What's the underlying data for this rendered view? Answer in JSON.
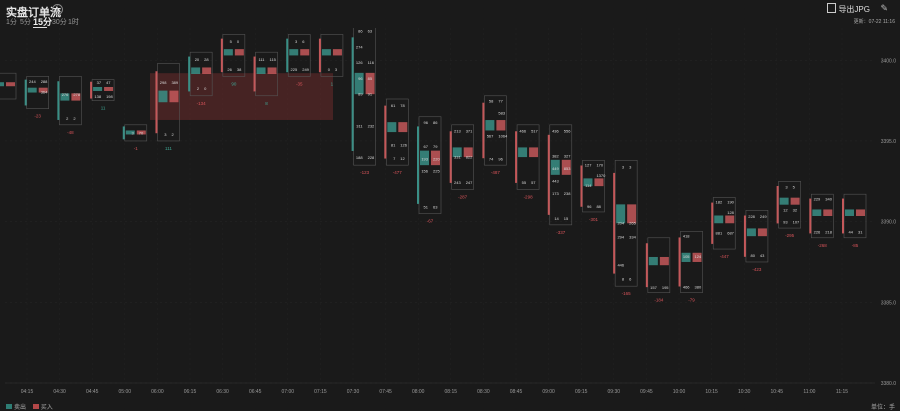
{
  "header": {
    "title": "实盘订单流",
    "tabs": [
      {
        "label": "1分",
        "active": false
      },
      {
        "label": "5分",
        "active": false
      },
      {
        "label": "15分",
        "active": true
      },
      {
        "label": "30分",
        "active": false
      },
      {
        "label": "1时",
        "active": false
      }
    ],
    "export_label": "导出JPG",
    "updated_label": "更新：",
    "updated_time": "07-22 11:16"
  },
  "legend": {
    "sell_label": "卖出",
    "buy_label": "买入",
    "sell_color": "#2e7d74",
    "buy_color": "#b34748"
  },
  "unit_label": "单位：手",
  "colors": {
    "bg": "#1a1a1a",
    "sell": "#3a8f86",
    "buy": "#c4585a",
    "grid": "#272727"
  },
  "chart_data": {
    "type": "footprint",
    "y_ticks": [
      "3400.0",
      "3395.0",
      "3390.0",
      "3385.0",
      "3380.0"
    ],
    "x_ticks": [
      "04:15",
      "04:30",
      "04:45",
      "05:00",
      "06:00",
      "06:15",
      "06:30",
      "06:45",
      "07:00",
      "07:15",
      "07:30",
      "07:45",
      "08:00",
      "08:15",
      "08:30",
      "08:45",
      "09:00",
      "09:15",
      "09:30",
      "09:45",
      "10:00",
      "10:15",
      "10:30",
      "10:45",
      "11:00",
      "11:15"
    ],
    "ylim": [
      3380,
      3402
    ],
    "candles": [
      {
        "top": 3399.2,
        "bottom": 3397.6,
        "rows": [
          [
            "",
            "",
            ""
          ],
          [
            "",
            "",
            ""
          ]
        ],
        "delta": "",
        "side": "buy"
      },
      {
        "top": 3399.0,
        "bottom": 3397.0,
        "rows": [
          [
            "244",
            "288"
          ],
          [
            "",
            "364"
          ],
          [
            "",
            ""
          ]
        ],
        "delta": "-23",
        "side": "sell"
      },
      {
        "top": 3399.0,
        "bottom": 3396.0,
        "rows": [
          [
            "",
            ""
          ],
          [
            "276",
            "278"
          ],
          [
            "",
            ""
          ],
          [
            "2",
            "2"
          ]
        ],
        "delta": "-48",
        "side": "sell"
      },
      {
        "top": 3398.8,
        "bottom": 3397.5,
        "rows": [
          [
            "37",
            "47"
          ],
          [
            "",
            ""
          ],
          [
            "138",
            "198"
          ]
        ],
        "delta": "11",
        "side": "buy"
      },
      {
        "top": 3396.0,
        "bottom": 3395.0,
        "rows": [
          [
            "3",
            "70"
          ]
        ],
        "delta": "-1",
        "side": "sell"
      },
      {
        "top": 3399.8,
        "bottom": 3395.0,
        "rows": [
          [
            "",
            ""
          ],
          [
            "298",
            "389"
          ],
          [
            "",
            ""
          ],
          [
            "",
            ""
          ],
          [
            "",
            ""
          ],
          [
            "3",
            "2"
          ]
        ],
        "delta": "111",
        "side": "buy"
      },
      {
        "top": 3400.5,
        "bottom": 3397.8,
        "rows": [
          [
            "20",
            "28"
          ],
          [
            "",
            ""
          ],
          [
            "2",
            "0"
          ]
        ],
        "delta": "-134",
        "side": "sell"
      },
      {
        "top": 3401.6,
        "bottom": 3399.0,
        "rows": [
          [
            "5",
            "0"
          ],
          [
            "",
            ""
          ],
          [
            "26",
            "38"
          ]
        ],
        "delta": "90",
        "side": "buy"
      },
      {
        "top": 3400.5,
        "bottom": 3397.8,
        "rows": [
          [
            "111",
            "115"
          ],
          [
            "",
            ""
          ],
          [
            "",
            ""
          ]
        ],
        "delta": "8",
        "side": "buy"
      },
      {
        "top": 3401.6,
        "bottom": 3399.0,
        "rows": [
          [
            "3",
            "6"
          ],
          [
            "",
            ""
          ],
          [
            "225",
            "249"
          ]
        ],
        "delta": "-35",
        "side": "sell"
      },
      {
        "top": 3401.6,
        "bottom": 3399.0,
        "rows": [
          [
            "",
            ""
          ],
          [
            "",
            ""
          ],
          [
            "0",
            "3"
          ]
        ],
        "delta": "1",
        "side": "buy"
      },
      {
        "top": 3402.3,
        "bottom": 3393.5,
        "rows": [
          [
            "86",
            "63"
          ],
          [
            "274",
            ""
          ],
          [
            "126",
            "116"
          ],
          [
            "96",
            "85"
          ],
          [
            "89",
            "91"
          ],
          [
            "",
            ""
          ],
          [
            "311",
            "232"
          ],
          [
            "",
            ""
          ],
          [
            "188",
            "228"
          ]
        ],
        "delta": "-123",
        "side": "sell"
      },
      {
        "top": 3397.6,
        "bottom": 3393.5,
        "rows": [
          [
            "61",
            "78"
          ],
          [
            "",
            ""
          ],
          [
            "",
            ""
          ],
          [
            "81",
            "126"
          ],
          [
            "7",
            "12"
          ]
        ],
        "delta": "-477",
        "side": "buy"
      },
      {
        "top": 3396.5,
        "bottom": 3390.5,
        "rows": [
          [
            "96",
            "86"
          ],
          [
            "",
            ""
          ],
          [
            "67",
            "79"
          ],
          [
            "193",
            "220"
          ],
          [
            "156",
            "225"
          ],
          [
            "",
            ""
          ],
          [
            "",
            ""
          ],
          [
            "51",
            "63"
          ]
        ],
        "delta": "-67",
        "side": "sell"
      },
      {
        "top": 3396.0,
        "bottom": 3392.0,
        "rows": [
          [
            "213",
            "371"
          ],
          [
            "",
            ""
          ],
          [
            "331",
            "822"
          ],
          [
            "",
            ""
          ],
          [
            "243",
            "247"
          ]
        ],
        "delta": "-287",
        "side": "buy"
      },
      {
        "top": 3397.8,
        "bottom": 3393.5,
        "rows": [
          [
            "58",
            "77"
          ],
          [
            "",
            "583"
          ],
          [
            "",
            ""
          ],
          [
            "567",
            "1064"
          ],
          [
            "",
            ""
          ],
          [
            "74",
            "96"
          ]
        ],
        "delta": "-487",
        "side": "buy"
      },
      {
        "top": 3396.0,
        "bottom": 3392.0,
        "rows": [
          [
            "466",
            "517"
          ],
          [
            "",
            ""
          ],
          [
            "",
            ""
          ],
          [
            "",
            ""
          ],
          [
            "55",
            "57"
          ]
        ],
        "delta": "-298",
        "side": "buy"
      },
      {
        "top": 3396.0,
        "bottom": 3389.8,
        "rows": [
          [
            "436",
            "556"
          ],
          [
            "",
            ""
          ],
          [
            "382",
            "327"
          ],
          [
            "449",
            "853"
          ],
          [
            "443",
            ""
          ],
          [
            "173",
            "238"
          ],
          [
            "",
            ""
          ],
          [
            "14",
            "15"
          ]
        ],
        "delta": "-337",
        "side": "buy"
      },
      {
        "top": 3393.8,
        "bottom": 3390.6,
        "rows": [
          [
            "127",
            "170"
          ],
          [
            "",
            "1370"
          ],
          [
            "114",
            ""
          ],
          [
            "",
            ""
          ],
          [
            "96",
            "88"
          ]
        ],
        "delta": "-301",
        "side": "buy"
      },
      {
        "top": 3393.8,
        "bottom": 3386.0,
        "rows": [
          [
            "3",
            "3"
          ],
          [
            "",
            ""
          ],
          [
            "",
            ""
          ],
          [
            "",
            ""
          ],
          [
            "204",
            "265"
          ],
          [
            "294",
            "334"
          ],
          [
            "",
            ""
          ],
          [
            "446",
            ""
          ],
          [
            "8",
            "6"
          ]
        ],
        "delta": "-165",
        "side": "buy"
      },
      {
        "top": 3389.0,
        "bottom": 3385.6,
        "rows": [
          [
            "",
            ""
          ],
          [
            "",
            ""
          ],
          [
            "",
            ""
          ],
          [
            "",
            ""
          ],
          [
            "",
            ""
          ],
          [
            "157",
            "195"
          ]
        ],
        "delta": "-184",
        "side": "buy"
      },
      {
        "top": 3389.4,
        "bottom": 3385.6,
        "rows": [
          [
            "418",
            ""
          ],
          [
            "",
            ""
          ],
          [
            "105",
            "124"
          ],
          [
            "",
            ""
          ],
          [
            "",
            ""
          ],
          [
            "466",
            "380"
          ]
        ],
        "delta": "-79",
        "side": "buy"
      },
      {
        "top": 3391.5,
        "bottom": 3388.3,
        "rows": [
          [
            "182",
            "190"
          ],
          [
            "",
            "128"
          ],
          [
            "",
            ""
          ],
          [
            "881",
            "687"
          ],
          [
            "",
            ""
          ]
        ],
        "delta": "-447",
        "side": "buy"
      },
      {
        "top": 3390.7,
        "bottom": 3387.5,
        "rows": [
          [
            "228",
            "249"
          ],
          [
            "",
            ""
          ],
          [
            "",
            ""
          ],
          [
            "80",
            "43"
          ]
        ],
        "delta": "-423",
        "side": "buy"
      },
      {
        "top": 3392.5,
        "bottom": 3389.6,
        "rows": [
          [
            "3",
            "5"
          ],
          [
            "",
            ""
          ],
          [
            "12",
            "32"
          ],
          [
            "93",
            "107"
          ]
        ],
        "delta": "-295",
        "side": "buy"
      },
      {
        "top": 3391.7,
        "bottom": 3389.0,
        "rows": [
          [
            "229",
            "340"
          ],
          [
            "",
            ""
          ],
          [
            "",
            ""
          ],
          [
            "226",
            "218"
          ]
        ],
        "delta": "-268",
        "side": "buy"
      },
      {
        "top": 3391.7,
        "bottom": 3389.0,
        "rows": [
          [
            "",
            ""
          ],
          [
            "",
            ""
          ],
          [
            "",
            ""
          ],
          [
            "44",
            "31"
          ]
        ],
        "delta": "-85",
        "side": "buy"
      }
    ]
  }
}
